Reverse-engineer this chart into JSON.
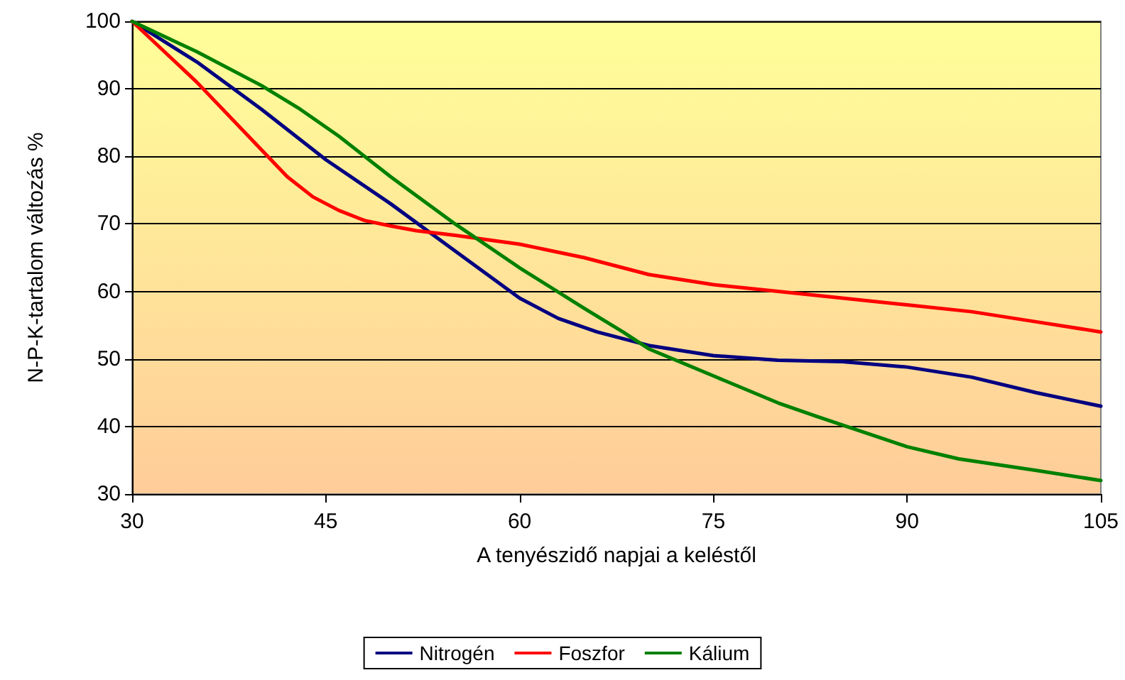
{
  "chart_data": {
    "type": "line",
    "xlabel": "A tenyészidő napjai a keléstől",
    "ylabel": "N-P-K-tartalom változás %",
    "x": [
      30,
      35,
      40,
      42,
      45,
      50,
      55,
      60,
      63,
      66,
      70,
      75,
      80,
      85,
      90,
      95,
      100,
      105
    ],
    "series": [
      {
        "name": "Nitrogén",
        "color": "#000080",
        "values": [
          100,
          94,
          87,
          84,
          79.5,
          73,
          66,
          59,
          56,
          54,
          52,
          50.5,
          49.8,
          49.6,
          48.8,
          47.3,
          45,
          43
        ]
      },
      {
        "name": "Foszfor",
        "color": "#ff0000",
        "x": [
          30,
          35,
          40,
          42,
          44,
          46,
          48,
          50,
          52,
          55,
          60,
          65,
          70,
          75,
          80,
          85,
          90,
          95,
          100,
          105
        ],
        "values": [
          100,
          91,
          81,
          77,
          74,
          72,
          70.5,
          69.7,
          69,
          68.3,
          67,
          65,
          62.5,
          61,
          60,
          59,
          58,
          57,
          55.5,
          54
        ]
      },
      {
        "name": "Kálium",
        "color": "#008000",
        "x": [
          30,
          35,
          40,
          43,
          46,
          50,
          55,
          60,
          65,
          68,
          70,
          75,
          80,
          83,
          90,
          94,
          100,
          105
        ],
        "values": [
          100,
          95.5,
          90.5,
          87,
          83,
          77,
          70,
          63.5,
          57.5,
          54,
          51.5,
          47.5,
          43.5,
          41.5,
          37,
          35.2,
          33.5,
          32
        ]
      }
    ],
    "xlim": [
      30,
      105
    ],
    "xticks": [
      30,
      45,
      60,
      75,
      90,
      105
    ],
    "ylim": [
      30,
      100
    ],
    "yticks": [
      30,
      40,
      50,
      60,
      70,
      80,
      90,
      100
    ],
    "grid": "y",
    "legend": "bottom",
    "marker": "none",
    "line_style": "solid"
  }
}
